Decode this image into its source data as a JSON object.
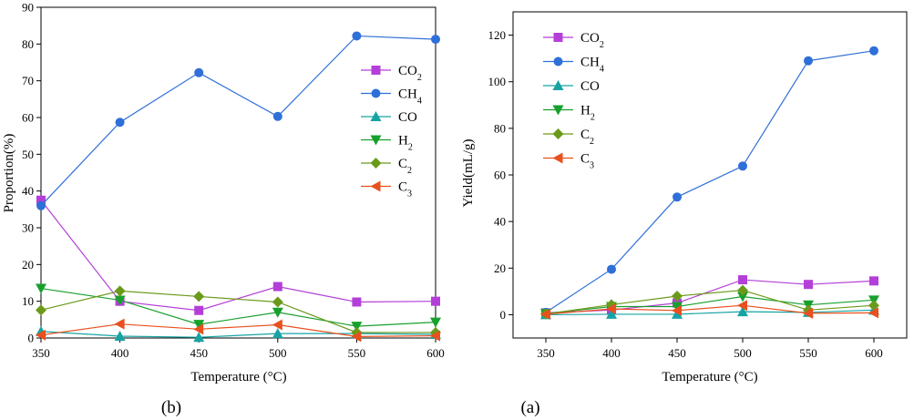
{
  "chart_data": [
    {
      "type": "line",
      "panel_label": "(b)",
      "xlabel": "Temperature (°C)",
      "ylabel": "Proportion(%)",
      "x": [
        350,
        400,
        450,
        500,
        550,
        600
      ],
      "xlim": [
        350,
        600
      ],
      "ylim": [
        0,
        90
      ],
      "xticks": [
        "350",
        "400",
        "450",
        "500",
        "550",
        "600"
      ],
      "yticks": [
        "0",
        "10",
        "20",
        "30",
        "40",
        "50",
        "60",
        "70",
        "80",
        "90"
      ],
      "legend_position": "center-right",
      "series": [
        {
          "name": "CO",
          "sub": "2",
          "color": "#b43fd8",
          "marker": "square",
          "values": [
            37.5,
            10.0,
            7.5,
            14.0,
            9.8,
            10.0
          ]
        },
        {
          "name": "CH",
          "sub": "4",
          "color": "#2f6fd8",
          "marker": "circle",
          "values": [
            36.0,
            58.7,
            72.2,
            60.3,
            82.2,
            81.3
          ]
        },
        {
          "name": "CO",
          "sub": "",
          "color": "#17a3a3",
          "marker": "triangle-up",
          "values": [
            1.8,
            0.5,
            0.2,
            1.2,
            1.2,
            1.0
          ]
        },
        {
          "name": "H",
          "sub": "2",
          "color": "#18a02c",
          "marker": "triangle-down",
          "values": [
            13.5,
            10.3,
            3.7,
            7.0,
            3.2,
            4.3
          ]
        },
        {
          "name": "C",
          "sub": "2",
          "color": "#6b9a1a",
          "marker": "diamond",
          "values": [
            7.6,
            12.8,
            11.3,
            9.8,
            1.5,
            1.5
          ]
        },
        {
          "name": "C",
          "sub": "3",
          "color": "#e8501e",
          "marker": "triangle-left",
          "values": [
            0.8,
            3.8,
            2.4,
            3.6,
            0.4,
            0.6
          ]
        }
      ]
    },
    {
      "type": "line",
      "panel_label": "(a)",
      "xlabel": "Temperature (°C)",
      "ylabel": "Yield(mL/g)",
      "x": [
        350,
        400,
        450,
        500,
        550,
        600
      ],
      "xlim": [
        325,
        625
      ],
      "ylim": [
        -10,
        130
      ],
      "xticks": [
        "350",
        "400",
        "450",
        "500",
        "550",
        "600"
      ],
      "yticks": [
        "0",
        "20",
        "40",
        "60",
        "80",
        "100",
        "120"
      ],
      "legend_position": "top-left",
      "series": [
        {
          "name": "CO",
          "sub": "2",
          "color": "#b43fd8",
          "marker": "square",
          "values": [
            0.8,
            2.0,
            5.0,
            15.0,
            13.0,
            14.5
          ]
        },
        {
          "name": "CH",
          "sub": "4",
          "color": "#2f6fd8",
          "marker": "circle",
          "values": [
            1.0,
            19.5,
            50.5,
            63.8,
            109.0,
            113.3
          ]
        },
        {
          "name": "CO",
          "sub": "",
          "color": "#17a3a3",
          "marker": "triangle-up",
          "values": [
            0.0,
            0.2,
            0.2,
            1.3,
            1.0,
            2.0
          ]
        },
        {
          "name": "H",
          "sub": "2",
          "color": "#18a02c",
          "marker": "triangle-down",
          "values": [
            0.5,
            3.5,
            3.5,
            7.8,
            4.2,
            6.3
          ]
        },
        {
          "name": "C",
          "sub": "2",
          "color": "#6b9a1a",
          "marker": "diamond",
          "values": [
            0.3,
            4.3,
            8.0,
            10.5,
            2.0,
            4.0
          ]
        },
        {
          "name": "C",
          "sub": "3",
          "color": "#e8501e",
          "marker": "triangle-left",
          "values": [
            0.2,
            2.5,
            1.8,
            4.0,
            0.6,
            0.8
          ]
        }
      ]
    }
  ]
}
